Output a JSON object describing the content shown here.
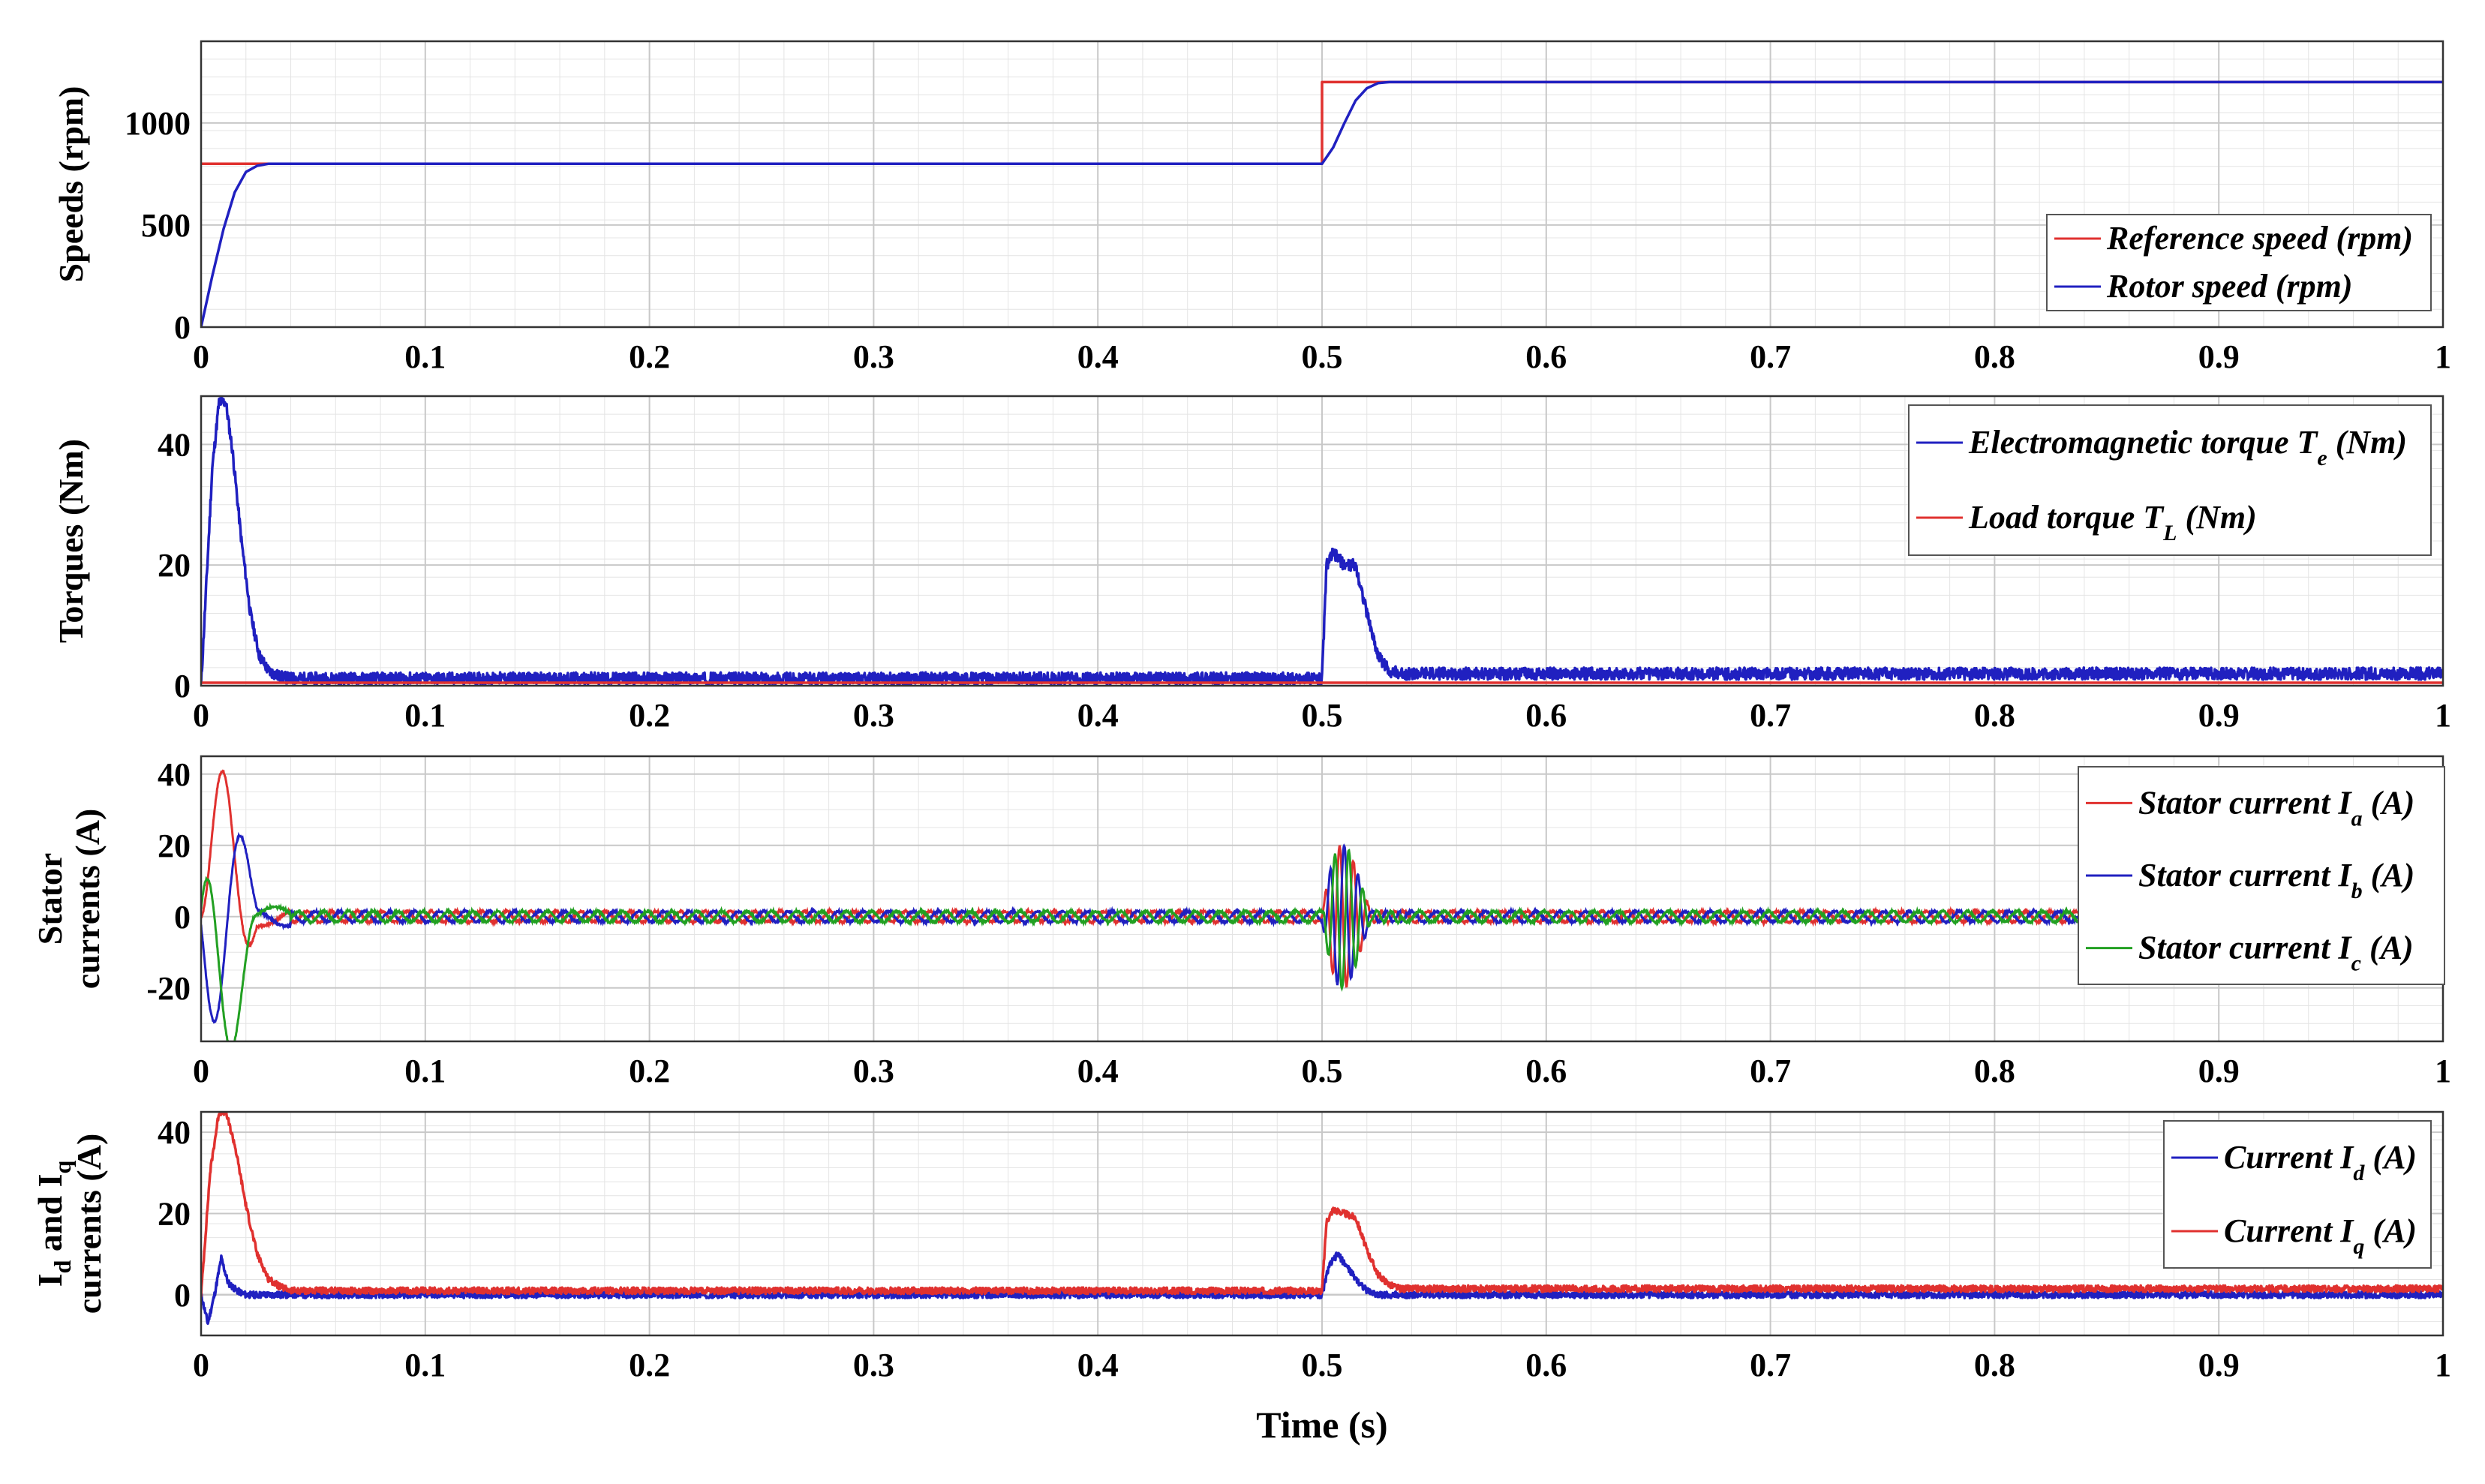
{
  "chart_data": [
    {
      "type": "line",
      "ylabel": "Speeds (rpm)",
      "xlim": [
        0,
        1
      ],
      "ylim": [
        0,
        1400
      ],
      "xticks": [
        0,
        0.1,
        0.2,
        0.3,
        0.4,
        0.5,
        0.6,
        0.7,
        0.8,
        0.9,
        1
      ],
      "xtick_labels": [
        "0",
        "0.1",
        "0.2",
        "0.3",
        "0.4",
        "0.5",
        "0.6",
        "0.7",
        "0.8",
        "0.9",
        "1"
      ],
      "yticks": [
        0,
        500,
        1000
      ],
      "ytick_labels": [
        "0",
        "500",
        "1000"
      ],
      "grid": true,
      "legend_position": "bottom-right",
      "series": [
        {
          "name": "Reference speed (rpm)",
          "color": "#e0312f",
          "x": [
            0,
            0.5,
            0.5,
            1
          ],
          "y": [
            800,
            800,
            1200,
            1200
          ]
        },
        {
          "name": "Rotor speed (rpm)",
          "color": "#2020c0",
          "x": [
            0,
            0.005,
            0.01,
            0.015,
            0.02,
            0.025,
            0.03,
            0.04,
            0.5,
            0.505,
            0.51,
            0.515,
            0.52,
            0.525,
            0.53,
            1
          ],
          "y": [
            0,
            250,
            480,
            660,
            760,
            790,
            800,
            800,
            800,
            880,
            1000,
            1110,
            1170,
            1195,
            1200,
            1200
          ]
        }
      ]
    },
    {
      "type": "line",
      "ylabel": "Torques (Nm)",
      "xlim": [
        0,
        1
      ],
      "ylim": [
        0,
        48
      ],
      "xticks": [
        0,
        0.1,
        0.2,
        0.3,
        0.4,
        0.5,
        0.6,
        0.7,
        0.8,
        0.9,
        1
      ],
      "xtick_labels": [
        "0",
        "0.1",
        "0.2",
        "0.3",
        "0.4",
        "0.5",
        "0.6",
        "0.7",
        "0.8",
        "0.9",
        "1"
      ],
      "yticks": [
        0,
        20,
        40
      ],
      "ytick_labels": [
        "0",
        "20",
        "40"
      ],
      "grid": true,
      "legend_position": "top-right",
      "series": [
        {
          "name": "Electromagnetic torque T",
          "subscript": "e",
          "unit": " (Nm)",
          "color": "#2020c0",
          "x": [
            0,
            0.005,
            0.008,
            0.011,
            0.014,
            0.018,
            0.022,
            0.026,
            0.03,
            0.035,
            0.04,
            0.5,
            0.502,
            0.505,
            0.51,
            0.515,
            0.52,
            0.525,
            0.53,
            0.535,
            1
          ],
          "y": [
            0,
            36,
            47,
            47,
            39,
            24,
            12,
            5,
            2.5,
            1.5,
            1.2,
            1.2,
            20,
            22,
            20,
            20,
            12,
            5,
            2.5,
            2,
            2
          ],
          "noise": 1.0
        },
        {
          "name": "Load torque T",
          "subscript": "L",
          "unit": " (Nm)",
          "color": "#e0312f",
          "x": [
            0,
            1
          ],
          "y": [
            0.5,
            0.5
          ]
        }
      ]
    },
    {
      "type": "line",
      "ylabel": [
        "Stator",
        "currents (A)"
      ],
      "xlim": [
        0,
        1
      ],
      "ylim": [
        -35,
        45
      ],
      "xticks": [
        0,
        0.1,
        0.2,
        0.3,
        0.4,
        0.5,
        0.6,
        0.7,
        0.8,
        0.9,
        1
      ],
      "xtick_labels": [
        "0",
        "0.1",
        "0.2",
        "0.3",
        "0.4",
        "0.5",
        "0.6",
        "0.7",
        "0.8",
        "0.9",
        "1"
      ],
      "yticks": [
        -20,
        0,
        20,
        40
      ],
      "ytick_labels": [
        "-20",
        "0",
        "20",
        "40"
      ],
      "grid": true,
      "legend_position": "top-right",
      "series": [
        {
          "name": "Stator current I",
          "subscript": "a",
          "unit": " (A)",
          "color": "#e0312f",
          "phase": 0
        },
        {
          "name": "Stator current I",
          "subscript": "b",
          "unit": " (A)",
          "color": "#2020c0",
          "phase": -2.094
        },
        {
          "name": "Stator current I",
          "subscript": "c",
          "unit": " (A)",
          "color": "#22a022",
          "phase": 2.094
        }
      ],
      "transients": [
        {
          "t_start": 0,
          "t_end": 0.04,
          "peak": 45
        },
        {
          "t_start": 0.5,
          "t_end": 0.535,
          "peak": 22
        }
      ],
      "steady_amplitude": 1.5
    },
    {
      "type": "line",
      "ylabel": [
        "I",
        "d",
        " and I",
        "q",
        "currents (A)"
      ],
      "xlim": [
        0,
        1
      ],
      "ylim": [
        -10,
        45
      ],
      "xticks": [
        0,
        0.1,
        0.2,
        0.3,
        0.4,
        0.5,
        0.6,
        0.7,
        0.8,
        0.9,
        1
      ],
      "xtick_labels": [
        "0",
        "0.1",
        "0.2",
        "0.3",
        "0.4",
        "0.5",
        "0.6",
        "0.7",
        "0.8",
        "0.9",
        "1"
      ],
      "yticks": [
        0,
        20,
        40
      ],
      "ytick_labels": [
        "0",
        "20",
        "40"
      ],
      "xlabel": "Time (s)",
      "grid": true,
      "legend_position": "top-right",
      "series": [
        {
          "name": "Current I",
          "subscript": "d",
          "unit": " (A)",
          "color": "#2020c0",
          "x": [
            0,
            0.003,
            0.006,
            0.009,
            0.012,
            0.016,
            0.02,
            0.5,
            0.503,
            0.507,
            0.511,
            0.515,
            0.52,
            0.525,
            1
          ],
          "y": [
            0,
            -7,
            0,
            9,
            3,
            1,
            0,
            0,
            7,
            10,
            7,
            4,
            1,
            0,
            0
          ],
          "noise": 0.8
        },
        {
          "name": "Current I",
          "subscript": "q",
          "unit": " (A)",
          "color": "#e0312f",
          "x": [
            0,
            0.004,
            0.008,
            0.011,
            0.015,
            0.02,
            0.025,
            0.03,
            0.035,
            0.04,
            0.5,
            0.502,
            0.505,
            0.51,
            0.515,
            0.52,
            0.525,
            0.53,
            0.535,
            1
          ],
          "y": [
            0,
            30,
            45,
            45,
            37,
            22,
            10,
            4,
            2,
            1,
            1,
            18,
            21,
            20,
            19,
            11,
            5,
            2.5,
            1.5,
            1.5
          ],
          "noise": 0.8
        }
      ]
    }
  ]
}
